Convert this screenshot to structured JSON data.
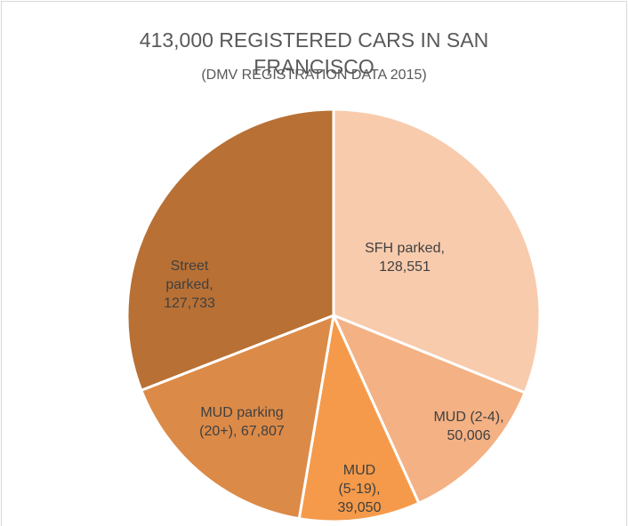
{
  "chart_data": {
    "type": "pie",
    "title": "413,000 REGISTERED CARS IN SAN FRANCISCO",
    "subtitle": "(DMV REGISTRATION DATA 2015)",
    "categories": [
      "SFH parked,",
      "MUD (2-4),",
      "MUD (5-19),",
      "MUD parking (20+),",
      "Street parked,"
    ],
    "values": [
      128551,
      50006,
      39050,
      67807,
      127733
    ],
    "value_labels": [
      "128,551",
      "50,006",
      "39,050",
      "67,807",
      "127,733"
    ],
    "colors": [
      "#f8cbad",
      "#f4b183",
      "#f59a4a",
      "#dc8a48",
      "#b87034"
    ]
  }
}
